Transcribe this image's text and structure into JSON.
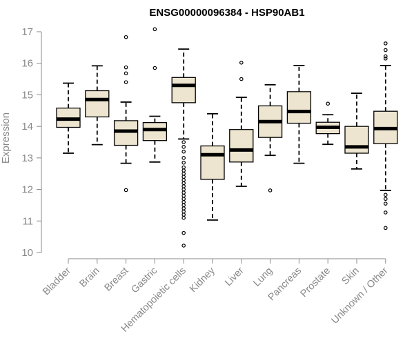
{
  "chart_data": {
    "type": "boxplot",
    "title": "ENSG00000096384 - HSP90AB1",
    "xlabel": "",
    "ylabel": "Expression",
    "ylim": [
      10,
      17
    ],
    "yticks": [
      10,
      11,
      12,
      13,
      14,
      15,
      16,
      17
    ],
    "grid": false,
    "box_fill": "#ede5cf",
    "categories": [
      "Bladder",
      "Brain",
      "Breast",
      "Gastric",
      "Hematopoietic cells",
      "Kidney",
      "Liver",
      "Lung",
      "Pancreas",
      "Prostate",
      "Skin",
      "Unknown / Other"
    ],
    "boxes": [
      {
        "name": "Bladder",
        "min": 13.15,
        "q1": 13.97,
        "median": 14.23,
        "q3": 14.58,
        "max": 15.37,
        "outliers": []
      },
      {
        "name": "Brain",
        "min": 13.42,
        "q1": 14.3,
        "median": 14.85,
        "q3": 15.13,
        "max": 15.92,
        "outliers": []
      },
      {
        "name": "Breast",
        "min": 12.83,
        "q1": 13.4,
        "median": 13.85,
        "q3": 14.18,
        "max": 14.77,
        "outliers": [
          16.83,
          15.87,
          15.68,
          15.4,
          11.98
        ]
      },
      {
        "name": "Gastric",
        "min": 12.87,
        "q1": 13.55,
        "median": 13.9,
        "q3": 14.12,
        "max": 14.32,
        "outliers": [
          17.08,
          15.85
        ]
      },
      {
        "name": "Hematopoietic cells",
        "min": 13.6,
        "q1": 14.75,
        "median": 15.3,
        "q3": 15.55,
        "max": 16.45,
        "outliers": [
          13.5,
          13.35,
          13.2,
          13.0,
          12.85,
          12.7,
          12.6,
          12.5,
          12.4,
          12.3,
          12.2,
          12.1,
          12.0,
          11.9,
          11.8,
          11.7,
          11.6,
          11.5,
          11.4,
          11.3,
          11.2,
          11.1,
          10.62,
          10.22
        ]
      },
      {
        "name": "Kidney",
        "min": 11.03,
        "q1": 12.32,
        "median": 13.1,
        "q3": 13.38,
        "max": 14.4,
        "outliers": []
      },
      {
        "name": "Liver",
        "min": 12.1,
        "q1": 12.87,
        "median": 13.25,
        "q3": 13.9,
        "max": 14.92,
        "outliers": [
          16.02,
          15.5
        ]
      },
      {
        "name": "Lung",
        "min": 13.08,
        "q1": 13.65,
        "median": 14.15,
        "q3": 14.65,
        "max": 15.32,
        "outliers": [
          11.97
        ]
      },
      {
        "name": "Pancreas",
        "min": 12.83,
        "q1": 14.1,
        "median": 14.47,
        "q3": 15.1,
        "max": 15.93,
        "outliers": []
      },
      {
        "name": "Prostate",
        "min": 13.43,
        "q1": 13.77,
        "median": 13.97,
        "q3": 14.13,
        "max": 14.37,
        "outliers": [
          14.72
        ]
      },
      {
        "name": "Skin",
        "min": 12.65,
        "q1": 13.15,
        "median": 13.35,
        "q3": 14.0,
        "max": 15.05,
        "outliers": []
      },
      {
        "name": "Unknown / Other",
        "min": 11.97,
        "q1": 13.45,
        "median": 13.93,
        "q3": 14.48,
        "max": 15.93,
        "outliers": [
          16.63,
          16.42,
          16.22,
          16.15,
          11.83,
          11.7,
          11.55,
          11.27,
          10.78
        ]
      }
    ]
  }
}
